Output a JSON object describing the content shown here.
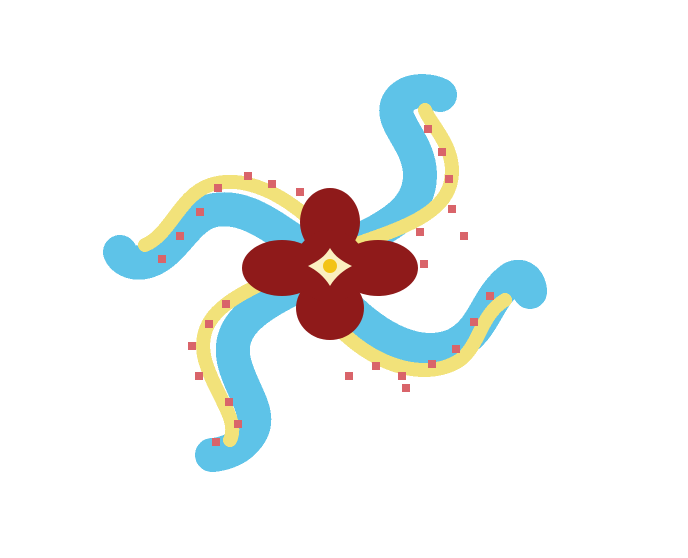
{
  "artwork": {
    "subject": "pixel-art-octopus-tentacles-with-flower",
    "icon_name": "octopus-flower-icon",
    "tentacle_count": 4,
    "colors": {
      "background": "#ffffff",
      "tentacle_blue": "#5ec3e8",
      "tentacle_blue_dark": "#3f9fd6",
      "tentacle_yellow": "#f2e27a",
      "suction_cup_red": "#d9646a",
      "flower_red": "#8f1a1a",
      "flower_center_cream": "#fbefc0",
      "flower_center_gold": "#f3c316"
    }
  }
}
